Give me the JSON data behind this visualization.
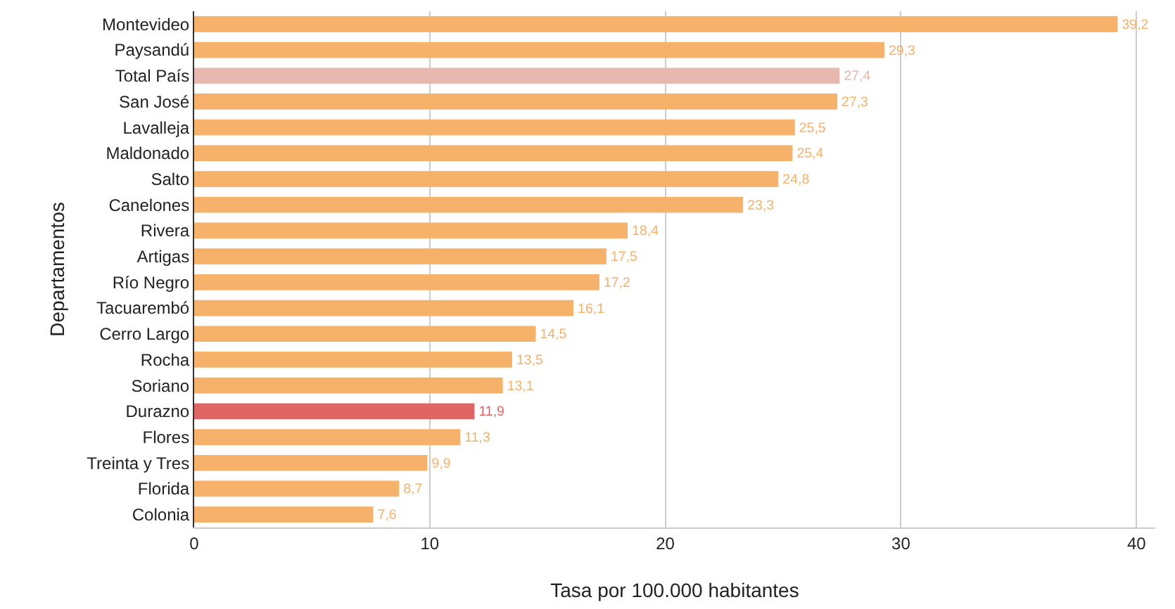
{
  "chart_data": {
    "type": "bar",
    "orientation": "horizontal",
    "xlabel": "Tasa por 100.000 habitantes",
    "ylabel": "Departamentos",
    "categories": [
      "Montevideo",
      "Paysandú",
      "Total País",
      "San José",
      "Lavalleja",
      "Maldonado",
      "Salto",
      "Canelones",
      "Rivera",
      "Artigas",
      "Río Negro",
      "Tacuarembó",
      "Cerro Largo",
      "Rocha",
      "Soriano",
      "Durazno",
      "Flores",
      "Treinta y Tres",
      "Florida",
      "Colonia"
    ],
    "values": [
      39.2,
      29.3,
      27.4,
      27.3,
      25.5,
      25.4,
      24.8,
      23.3,
      18.4,
      17.5,
      17.2,
      16.1,
      14.5,
      13.5,
      13.1,
      11.9,
      11.3,
      9.9,
      8.7,
      7.6
    ],
    "value_labels": [
      "39,2",
      "29,3",
      "27,4",
      "27,3",
      "25,5",
      "25,4",
      "24,8",
      "23,3",
      "18,4",
      "17,5",
      "17,2",
      "16,1",
      "14,5",
      "13,5",
      "13,1",
      "11,9",
      "11,3",
      "9,9",
      "8,7",
      "7,6"
    ],
    "colors": [
      "#f6b26b",
      "#f6b26b",
      "#e6b8af",
      "#f6b26b",
      "#f6b26b",
      "#f6b26b",
      "#f6b26b",
      "#f6b26b",
      "#f6b26b",
      "#f6b26b",
      "#f6b26b",
      "#f6b26b",
      "#f6b26b",
      "#f6b26b",
      "#f6b26b",
      "#e06666",
      "#f6b26b",
      "#f6b26b",
      "#f6b26b",
      "#f6b26b"
    ],
    "xlim": [
      0,
      40.8
    ],
    "xticks": [
      0,
      10,
      20,
      30,
      40
    ],
    "grid": "x",
    "legend": false
  }
}
